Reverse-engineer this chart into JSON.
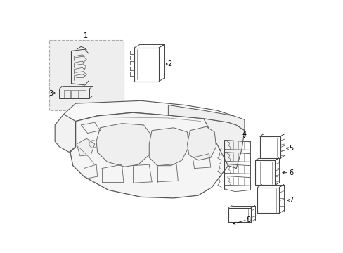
{
  "bg_color": "#ffffff",
  "fig_width": 4.89,
  "fig_height": 3.6,
  "dpi": 100,
  "lc": "#333333",
  "lc2": "#555555",
  "lc3": "#777777"
}
